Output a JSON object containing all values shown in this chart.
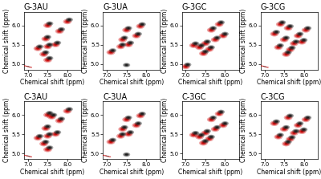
{
  "panels": [
    {
      "title": "G-3AU",
      "black_dots": [
        [
          7.55,
          5.15
        ],
        [
          7.45,
          5.3
        ],
        [
          7.3,
          5.45
        ],
        [
          7.55,
          5.5
        ],
        [
          7.75,
          5.55
        ],
        [
          7.5,
          5.7
        ],
        [
          7.85,
          5.9
        ],
        [
          7.55,
          6.05
        ],
        [
          8.05,
          6.15
        ]
      ],
      "red_dots": [
        [
          7.5,
          5.1
        ],
        [
          7.4,
          5.25
        ],
        [
          7.25,
          5.4
        ],
        [
          7.5,
          5.45
        ],
        [
          7.7,
          5.5
        ],
        [
          7.45,
          5.65
        ],
        [
          7.8,
          5.85
        ],
        [
          7.5,
          6.0
        ],
        [
          8.0,
          6.1
        ]
      ],
      "corner_signal": true
    },
    {
      "title": "G-3UA",
      "black_dots": [
        [
          7.5,
          4.97
        ],
        [
          7.15,
          5.35
        ],
        [
          7.4,
          5.5
        ],
        [
          7.6,
          5.55
        ],
        [
          7.45,
          5.68
        ],
        [
          7.8,
          5.78
        ],
        [
          7.55,
          5.93
        ],
        [
          7.9,
          6.03
        ]
      ],
      "red_dots": [
        [
          7.1,
          5.3
        ],
        [
          7.35,
          5.45
        ],
        [
          7.55,
          5.5
        ],
        [
          7.4,
          5.63
        ],
        [
          7.75,
          5.73
        ],
        [
          7.5,
          5.88
        ],
        [
          7.85,
          5.98
        ]
      ],
      "corner_signal": false
    },
    {
      "title": "G-3GC",
      "black_dots": [
        [
          7.05,
          4.98
        ],
        [
          7.5,
          5.32
        ],
        [
          7.65,
          5.43
        ],
        [
          7.4,
          5.48
        ],
        [
          7.55,
          5.58
        ],
        [
          7.8,
          5.68
        ],
        [
          7.25,
          5.53
        ],
        [
          8.0,
          5.78
        ],
        [
          7.7,
          5.93
        ],
        [
          7.9,
          6.08
        ]
      ],
      "red_dots": [
        [
          7.0,
          4.93
        ],
        [
          7.45,
          5.27
        ],
        [
          7.6,
          5.38
        ],
        [
          7.35,
          5.43
        ],
        [
          7.5,
          5.53
        ],
        [
          7.75,
          5.63
        ],
        [
          7.2,
          5.48
        ],
        [
          7.95,
          5.73
        ],
        [
          7.65,
          5.88
        ],
        [
          7.85,
          6.03
        ]
      ],
      "corner_signal": false
    },
    {
      "title": "G-3CG",
      "black_dots": [
        [
          7.6,
          5.3
        ],
        [
          7.7,
          5.42
        ],
        [
          7.4,
          5.48
        ],
        [
          7.8,
          5.58
        ],
        [
          8.0,
          5.62
        ],
        [
          7.55,
          5.68
        ],
        [
          7.9,
          5.78
        ],
        [
          7.3,
          5.83
        ],
        [
          8.1,
          5.93
        ],
        [
          7.65,
          5.98
        ],
        [
          7.45,
          6.08
        ]
      ],
      "red_dots": [
        [
          7.55,
          5.25
        ],
        [
          7.65,
          5.37
        ],
        [
          7.35,
          5.43
        ],
        [
          7.75,
          5.53
        ],
        [
          7.95,
          5.57
        ],
        [
          7.5,
          5.63
        ],
        [
          7.85,
          5.73
        ],
        [
          7.25,
          5.78
        ],
        [
          8.05,
          5.88
        ],
        [
          7.6,
          5.93
        ],
        [
          7.4,
          6.03
        ]
      ],
      "corner_signal": true
    },
    {
      "title": "C-3AU",
      "black_dots": [
        [
          7.55,
          5.15
        ],
        [
          7.45,
          5.3
        ],
        [
          7.3,
          5.45
        ],
        [
          7.55,
          5.5
        ],
        [
          7.75,
          5.55
        ],
        [
          7.5,
          5.7
        ],
        [
          7.85,
          5.9
        ],
        [
          7.55,
          6.05
        ],
        [
          8.05,
          6.15
        ],
        [
          7.65,
          6.0
        ]
      ],
      "red_dots": [
        [
          7.5,
          5.1
        ],
        [
          7.4,
          5.25
        ],
        [
          7.25,
          5.4
        ],
        [
          7.5,
          5.45
        ],
        [
          7.7,
          5.5
        ],
        [
          7.45,
          5.65
        ],
        [
          7.8,
          5.85
        ],
        [
          7.5,
          6.0
        ],
        [
          8.0,
          6.1
        ],
        [
          7.6,
          5.95
        ]
      ],
      "corner_signal": true
    },
    {
      "title": "C-3UA",
      "black_dots": [
        [
          7.5,
          4.97
        ],
        [
          7.15,
          5.35
        ],
        [
          7.4,
          5.5
        ],
        [
          7.6,
          5.55
        ],
        [
          7.45,
          5.68
        ],
        [
          7.8,
          5.78
        ],
        [
          7.55,
          5.93
        ],
        [
          7.9,
          6.03
        ]
      ],
      "red_dots": [
        [
          7.1,
          5.3
        ],
        [
          7.35,
          5.45
        ],
        [
          7.55,
          5.5
        ],
        [
          7.4,
          5.63
        ],
        [
          7.75,
          5.73
        ],
        [
          7.5,
          5.88
        ],
        [
          7.85,
          5.98
        ]
      ],
      "corner_signal": true
    },
    {
      "title": "C-3GC",
      "black_dots": [
        [
          7.5,
          5.32
        ],
        [
          7.65,
          5.43
        ],
        [
          7.4,
          5.48
        ],
        [
          7.55,
          5.58
        ],
        [
          7.8,
          5.68
        ],
        [
          7.25,
          5.53
        ],
        [
          8.0,
          5.78
        ],
        [
          7.7,
          5.93
        ],
        [
          7.9,
          6.08
        ]
      ],
      "red_dots": [
        [
          7.45,
          5.27
        ],
        [
          7.6,
          5.38
        ],
        [
          7.35,
          5.43
        ],
        [
          7.5,
          5.53
        ],
        [
          7.75,
          5.63
        ],
        [
          7.2,
          5.48
        ],
        [
          7.95,
          5.73
        ],
        [
          7.65,
          5.88
        ],
        [
          7.85,
          6.03
        ]
      ],
      "corner_signal": false
    },
    {
      "title": "C-3CG",
      "black_dots": [
        [
          7.6,
          5.3
        ],
        [
          7.7,
          5.42
        ],
        [
          7.4,
          5.48
        ],
        [
          7.8,
          5.58
        ],
        [
          8.0,
          5.62
        ],
        [
          7.55,
          5.68
        ],
        [
          7.9,
          5.78
        ],
        [
          7.3,
          5.83
        ],
        [
          8.1,
          5.93
        ],
        [
          7.65,
          5.98
        ]
      ],
      "red_dots": [
        [
          7.55,
          5.25
        ],
        [
          7.65,
          5.37
        ],
        [
          7.35,
          5.43
        ],
        [
          7.75,
          5.53
        ],
        [
          7.95,
          5.57
        ],
        [
          7.5,
          5.63
        ],
        [
          7.85,
          5.73
        ],
        [
          7.25,
          5.78
        ],
        [
          8.05,
          5.88
        ],
        [
          7.6,
          5.93
        ]
      ],
      "corner_signal": false
    }
  ],
  "xlabel": "Chemical shift (ppm)",
  "ylabel": "Chemical shift (ppm)",
  "black_color": "#1a1a1a",
  "red_color": "#cc0000",
  "pink_color": "#ff8080",
  "bg_color": "#ffffff",
  "title_fontsize": 7,
  "label_fontsize": 5.5,
  "tick_fontsize": 5,
  "x_ticks": [
    8.0,
    7.5,
    7.0
  ],
  "y_ticks": [
    5.0,
    5.5,
    6.0
  ],
  "xlim": [
    8.35,
    6.9
  ],
  "ylim": [
    6.35,
    4.85
  ]
}
